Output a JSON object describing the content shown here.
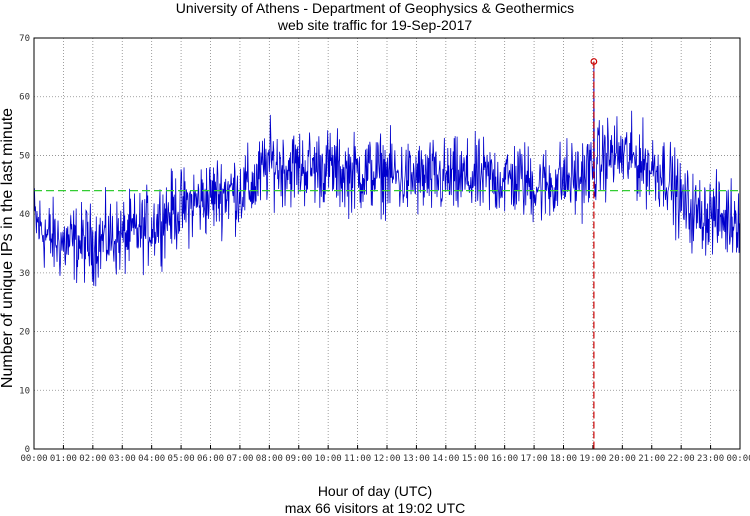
{
  "chart_data": {
    "type": "line",
    "title": "University of Athens - Department of Geophysics & Geothermics",
    "subtitle": "web site traffic for 19-Sep-2017",
    "xlabel": "Hour of day (UTC)",
    "caption": "max 66 visitors at 19:02 UTC",
    "ylabel": "Number of unique IPs in the last minute",
    "ylim": [
      0,
      70
    ],
    "xlim": [
      "00:00",
      "24:00"
    ],
    "grid": true,
    "yticks": [
      "0",
      "10",
      "20",
      "30",
      "40",
      "50",
      "60",
      "70"
    ],
    "xticks": [
      "00:00",
      "01:00",
      "02:00",
      "03:00",
      "04:00",
      "05:00",
      "06:00",
      "07:00",
      "08:00",
      "09:00",
      "10:00",
      "11:00",
      "12:00",
      "13:00",
      "14:00",
      "15:00",
      "16:00",
      "17:00",
      "18:00",
      "19:00",
      "20:00",
      "21:00",
      "22:00",
      "23:00",
      "00:00"
    ],
    "series": [
      {
        "color": "#0000cc",
        "x_hours": [
          0,
          0.5,
          1,
          1.5,
          2,
          2.5,
          3,
          3.5,
          4,
          4.5,
          5,
          5.5,
          6,
          6.5,
          7,
          7.5,
          8,
          8.5,
          9,
          9.5,
          10,
          10.5,
          11,
          11.5,
          12,
          12.5,
          13,
          13.5,
          14,
          14.5,
          15,
          15.5,
          16,
          16.5,
          17,
          17.5,
          18,
          18.5,
          19,
          19.5,
          20,
          20.5,
          21,
          21.5,
          22,
          22.5,
          23,
          23.5,
          24
        ],
        "values": [
          39,
          36,
          35,
          35,
          35,
          36,
          36,
          37,
          38,
          40,
          41,
          42,
          43,
          44,
          44,
          45,
          49,
          48,
          48,
          48,
          48,
          47,
          47,
          47,
          47,
          46,
          46,
          46,
          46,
          46,
          46,
          46,
          46,
          46,
          45,
          45,
          46,
          46,
          48,
          50,
          50,
          49,
          48,
          47,
          42,
          40,
          40,
          39,
          40
        ]
      }
    ],
    "mean_line": {
      "value": 44,
      "color": "#33cc33"
    },
    "max_marker": {
      "x": "19:02",
      "x_hours": 19.033,
      "value": 66,
      "color": "#cc0000"
    }
  }
}
